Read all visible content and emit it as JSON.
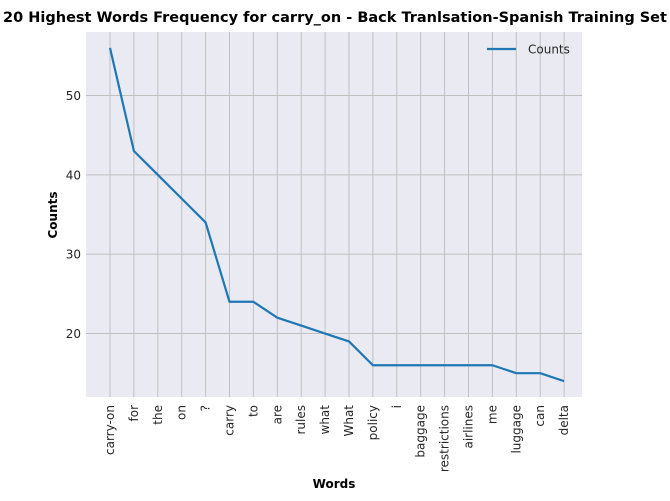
{
  "chart_data": {
    "type": "line",
    "title": "20 Highest Words Frequency for carry_on - Back Tranlsation-Spanish Training Set",
    "xlabel": "Words",
    "ylabel": "Counts",
    "categories": [
      "carry-on",
      "for",
      "the",
      "on",
      "?",
      "carry",
      "to",
      "are",
      "rules",
      "what",
      "What",
      "policy",
      "i",
      "baggage",
      "restrictions",
      "airlines",
      "me",
      "luggage",
      "can",
      "delta"
    ],
    "series": [
      {
        "name": "Counts",
        "values": [
          56,
          43,
          40,
          37,
          34,
          24,
          24,
          22,
          21,
          20,
          19,
          16,
          16,
          16,
          16,
          16,
          16,
          15,
          15,
          14
        ]
      }
    ],
    "ylim": [
      12,
      58
    ],
    "yticks": [
      20,
      30,
      40,
      50
    ],
    "grid": true,
    "legend_position": "top-right",
    "line_color": "#1f77b4",
    "plot_background": "#eaeaf2",
    "grid_color": "#c0c0c0"
  }
}
